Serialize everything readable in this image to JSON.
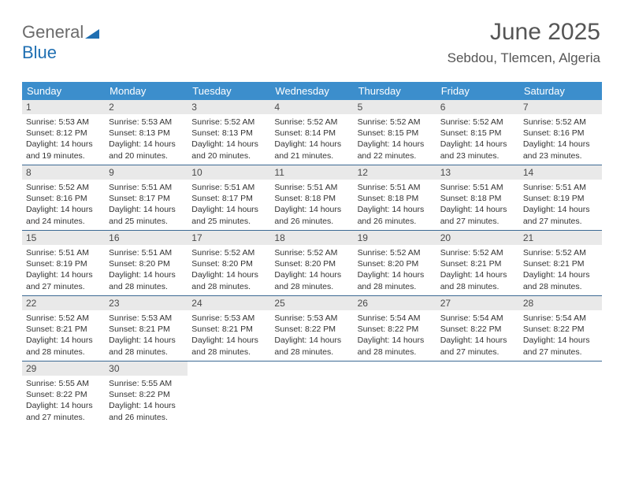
{
  "logo": {
    "part1": "General",
    "part2": "Blue"
  },
  "title": "June 2025",
  "subtitle": "Sebdou, Tlemcen, Algeria",
  "colors": {
    "header_bg": "#3c8ecc",
    "header_fg": "#ffffff",
    "daynum_bg": "#e9e9e9",
    "week_border": "#3c6a94",
    "logo_gray": "#6b6b6b",
    "logo_blue": "#1f6fb2"
  },
  "weekdays": [
    "Sunday",
    "Monday",
    "Tuesday",
    "Wednesday",
    "Thursday",
    "Friday",
    "Saturday"
  ],
  "weeks": [
    [
      {
        "n": "1",
        "sr": "5:53 AM",
        "ss": "8:12 PM",
        "dl": "14 hours and 19 minutes."
      },
      {
        "n": "2",
        "sr": "5:53 AM",
        "ss": "8:13 PM",
        "dl": "14 hours and 20 minutes."
      },
      {
        "n": "3",
        "sr": "5:52 AM",
        "ss": "8:13 PM",
        "dl": "14 hours and 20 minutes."
      },
      {
        "n": "4",
        "sr": "5:52 AM",
        "ss": "8:14 PM",
        "dl": "14 hours and 21 minutes."
      },
      {
        "n": "5",
        "sr": "5:52 AM",
        "ss": "8:15 PM",
        "dl": "14 hours and 22 minutes."
      },
      {
        "n": "6",
        "sr": "5:52 AM",
        "ss": "8:15 PM",
        "dl": "14 hours and 23 minutes."
      },
      {
        "n": "7",
        "sr": "5:52 AM",
        "ss": "8:16 PM",
        "dl": "14 hours and 23 minutes."
      }
    ],
    [
      {
        "n": "8",
        "sr": "5:52 AM",
        "ss": "8:16 PM",
        "dl": "14 hours and 24 minutes."
      },
      {
        "n": "9",
        "sr": "5:51 AM",
        "ss": "8:17 PM",
        "dl": "14 hours and 25 minutes."
      },
      {
        "n": "10",
        "sr": "5:51 AM",
        "ss": "8:17 PM",
        "dl": "14 hours and 25 minutes."
      },
      {
        "n": "11",
        "sr": "5:51 AM",
        "ss": "8:18 PM",
        "dl": "14 hours and 26 minutes."
      },
      {
        "n": "12",
        "sr": "5:51 AM",
        "ss": "8:18 PM",
        "dl": "14 hours and 26 minutes."
      },
      {
        "n": "13",
        "sr": "5:51 AM",
        "ss": "8:18 PM",
        "dl": "14 hours and 27 minutes."
      },
      {
        "n": "14",
        "sr": "5:51 AM",
        "ss": "8:19 PM",
        "dl": "14 hours and 27 minutes."
      }
    ],
    [
      {
        "n": "15",
        "sr": "5:51 AM",
        "ss": "8:19 PM",
        "dl": "14 hours and 27 minutes."
      },
      {
        "n": "16",
        "sr": "5:51 AM",
        "ss": "8:20 PM",
        "dl": "14 hours and 28 minutes."
      },
      {
        "n": "17",
        "sr": "5:52 AM",
        "ss": "8:20 PM",
        "dl": "14 hours and 28 minutes."
      },
      {
        "n": "18",
        "sr": "5:52 AM",
        "ss": "8:20 PM",
        "dl": "14 hours and 28 minutes."
      },
      {
        "n": "19",
        "sr": "5:52 AM",
        "ss": "8:20 PM",
        "dl": "14 hours and 28 minutes."
      },
      {
        "n": "20",
        "sr": "5:52 AM",
        "ss": "8:21 PM",
        "dl": "14 hours and 28 minutes."
      },
      {
        "n": "21",
        "sr": "5:52 AM",
        "ss": "8:21 PM",
        "dl": "14 hours and 28 minutes."
      }
    ],
    [
      {
        "n": "22",
        "sr": "5:52 AM",
        "ss": "8:21 PM",
        "dl": "14 hours and 28 minutes."
      },
      {
        "n": "23",
        "sr": "5:53 AM",
        "ss": "8:21 PM",
        "dl": "14 hours and 28 minutes."
      },
      {
        "n": "24",
        "sr": "5:53 AM",
        "ss": "8:21 PM",
        "dl": "14 hours and 28 minutes."
      },
      {
        "n": "25",
        "sr": "5:53 AM",
        "ss": "8:22 PM",
        "dl": "14 hours and 28 minutes."
      },
      {
        "n": "26",
        "sr": "5:54 AM",
        "ss": "8:22 PM",
        "dl": "14 hours and 28 minutes."
      },
      {
        "n": "27",
        "sr": "5:54 AM",
        "ss": "8:22 PM",
        "dl": "14 hours and 27 minutes."
      },
      {
        "n": "28",
        "sr": "5:54 AM",
        "ss": "8:22 PM",
        "dl": "14 hours and 27 minutes."
      }
    ],
    [
      {
        "n": "29",
        "sr": "5:55 AM",
        "ss": "8:22 PM",
        "dl": "14 hours and 27 minutes."
      },
      {
        "n": "30",
        "sr": "5:55 AM",
        "ss": "8:22 PM",
        "dl": "14 hours and 26 minutes."
      },
      null,
      null,
      null,
      null,
      null
    ]
  ],
  "labels": {
    "sunrise": "Sunrise:",
    "sunset": "Sunset:",
    "daylight": "Daylight:"
  }
}
